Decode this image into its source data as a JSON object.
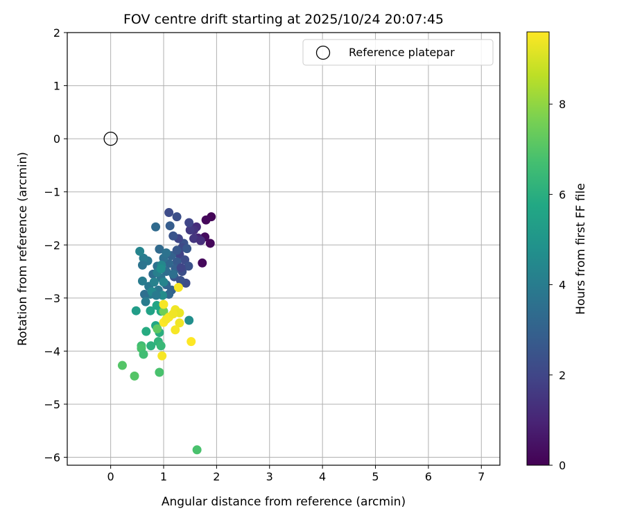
{
  "chart_data": {
    "type": "scatter",
    "title": "FOV centre drift starting at 2025/10/24 20:07:45",
    "xlabel": "Angular distance from reference (arcmin)",
    "ylabel": "Rotation from reference (arcmin)",
    "xlim": [
      -0.82,
      7.35
    ],
    "ylim": [
      -6.15,
      2.0
    ],
    "xticks": [
      "0",
      "1",
      "2",
      "3",
      "4",
      "5",
      "6",
      "7"
    ],
    "yticks": [
      "2",
      "1",
      "0",
      "−1",
      "−2",
      "−3",
      "−4",
      "−5",
      "−6"
    ],
    "grid": true,
    "legend": {
      "position": "top-right",
      "entries": [
        "Reference platepar"
      ]
    },
    "reference_point": {
      "x": 0.0,
      "y": 0.0
    },
    "colorbar": {
      "label": "Hours from first FF file",
      "range": [
        0,
        9.6
      ],
      "ticks": [
        "0",
        "2",
        "4",
        "6",
        "8"
      ],
      "colormap": "viridis"
    },
    "series": [
      {
        "points": [
          {
            "x": 1.9,
            "y": -1.47,
            "c": 0.1
          },
          {
            "x": 1.8,
            "y": -1.53,
            "c": 0.2
          },
          {
            "x": 1.88,
            "y": -1.97,
            "c": 0.2
          },
          {
            "x": 1.78,
            "y": -1.85,
            "c": 0.3
          },
          {
            "x": 1.73,
            "y": -2.34,
            "c": 0.2
          },
          {
            "x": 1.62,
            "y": -1.66,
            "c": 1.2
          },
          {
            "x": 1.57,
            "y": -1.72,
            "c": 1.4
          },
          {
            "x": 1.5,
            "y": -1.72,
            "c": 1.6
          },
          {
            "x": 1.65,
            "y": -1.87,
            "c": 1.0
          },
          {
            "x": 1.57,
            "y": -1.88,
            "c": 1.5
          },
          {
            "x": 1.7,
            "y": -1.92,
            "c": 1.3
          },
          {
            "x": 1.48,
            "y": -1.58,
            "c": 2.0
          },
          {
            "x": 1.25,
            "y": -1.47,
            "c": 2.3
          },
          {
            "x": 1.1,
            "y": -1.39,
            "c": 2.2
          },
          {
            "x": 1.38,
            "y": -1.97,
            "c": 2.4
          },
          {
            "x": 1.28,
            "y": -1.88,
            "c": 2.0
          },
          {
            "x": 1.18,
            "y": -1.83,
            "c": 2.5
          },
          {
            "x": 1.35,
            "y": -2.05,
            "c": 2.1
          },
          {
            "x": 1.44,
            "y": -2.07,
            "c": 2.6
          },
          {
            "x": 1.3,
            "y": -2.18,
            "c": 1.9
          },
          {
            "x": 1.4,
            "y": -2.28,
            "c": 2.2
          },
          {
            "x": 1.47,
            "y": -2.4,
            "c": 2.4
          },
          {
            "x": 1.35,
            "y": -2.5,
            "c": 2.3
          },
          {
            "x": 1.25,
            "y": -2.32,
            "c": 2.7
          },
          {
            "x": 1.2,
            "y": -2.6,
            "c": 2.5
          },
          {
            "x": 1.42,
            "y": -2.72,
            "c": 2.2
          },
          {
            "x": 1.32,
            "y": -2.67,
            "c": 2.4
          },
          {
            "x": 1.15,
            "y": -2.2,
            "c": 3.0
          },
          {
            "x": 1.1,
            "y": -2.35,
            "c": 3.2
          },
          {
            "x": 1.05,
            "y": -2.5,
            "c": 3.4
          },
          {
            "x": 1.22,
            "y": -2.45,
            "c": 2.9
          },
          {
            "x": 1.12,
            "y": -1.64,
            "c": 2.8
          },
          {
            "x": 0.85,
            "y": -1.66,
            "c": 3.3
          },
          {
            "x": 0.92,
            "y": -2.08,
            "c": 3.3
          },
          {
            "x": 1.0,
            "y": -2.25,
            "c": 3.5
          },
          {
            "x": 0.88,
            "y": -2.4,
            "c": 3.6
          },
          {
            "x": 0.8,
            "y": -2.55,
            "c": 3.4
          },
          {
            "x": 0.95,
            "y": -2.62,
            "c": 3.7
          },
          {
            "x": 1.05,
            "y": -2.75,
            "c": 3.1
          },
          {
            "x": 1.15,
            "y": -2.85,
            "c": 3.0
          },
          {
            "x": 0.9,
            "y": -2.85,
            "c": 3.8
          },
          {
            "x": 0.75,
            "y": -2.93,
            "c": 3.9
          },
          {
            "x": 0.64,
            "y": -2.93,
            "c": 3.5
          },
          {
            "x": 1.1,
            "y": -2.93,
            "c": 3.2
          },
          {
            "x": 0.7,
            "y": -2.3,
            "c": 3.8
          },
          {
            "x": 0.62,
            "y": -2.25,
            "c": 4.0
          },
          {
            "x": 0.6,
            "y": -2.38,
            "c": 3.7
          },
          {
            "x": 0.55,
            "y": -2.12,
            "c": 4.3
          },
          {
            "x": 0.6,
            "y": -2.68,
            "c": 4.0
          },
          {
            "x": 0.72,
            "y": -2.78,
            "c": 3.8
          },
          {
            "x": 0.82,
            "y": -2.7,
            "c": 4.2
          },
          {
            "x": 0.88,
            "y": -2.52,
            "c": 4.1
          },
          {
            "x": 0.96,
            "y": -2.38,
            "c": 4.4
          },
          {
            "x": 1.0,
            "y": -2.7,
            "c": 4.3
          },
          {
            "x": 0.66,
            "y": -3.07,
            "c": 4.0
          },
          {
            "x": 0.78,
            "y": -2.88,
            "c": 4.5
          },
          {
            "x": 0.98,
            "y": -2.95,
            "c": 4.6
          },
          {
            "x": 0.95,
            "y": -2.45,
            "c": 4.7
          },
          {
            "x": 1.18,
            "y": -2.55,
            "c": 3.5
          },
          {
            "x": 1.25,
            "y": -2.1,
            "c": 2.6
          },
          {
            "x": 1.33,
            "y": -2.43,
            "c": 2.0
          },
          {
            "x": 1.05,
            "y": -2.15,
            "c": 3.6
          },
          {
            "x": 0.86,
            "y": -2.95,
            "c": 3.9
          },
          {
            "x": 1.48,
            "y": -3.42,
            "c": 4.7
          },
          {
            "x": 0.48,
            "y": -3.24,
            "c": 5.3
          },
          {
            "x": 0.75,
            "y": -3.24,
            "c": 5.5
          },
          {
            "x": 0.87,
            "y": -3.14,
            "c": 5.6
          },
          {
            "x": 0.95,
            "y": -3.25,
            "c": 5.8
          },
          {
            "x": 0.85,
            "y": -3.52,
            "c": 5.7
          },
          {
            "x": 0.92,
            "y": -3.65,
            "c": 6.0
          },
          {
            "x": 0.67,
            "y": -3.63,
            "c": 5.9
          },
          {
            "x": 0.9,
            "y": -3.82,
            "c": 6.2
          },
          {
            "x": 0.76,
            "y": -3.9,
            "c": 6.1
          },
          {
            "x": 0.95,
            "y": -3.9,
            "c": 6.4
          },
          {
            "x": 0.58,
            "y": -3.9,
            "c": 6.6
          },
          {
            "x": 0.58,
            "y": -3.95,
            "c": 6.8
          },
          {
            "x": 0.62,
            "y": -4.06,
            "c": 6.6
          },
          {
            "x": 0.22,
            "y": -4.27,
            "c": 7.0
          },
          {
            "x": 0.45,
            "y": -4.47,
            "c": 7.0
          },
          {
            "x": 0.92,
            "y": -4.4,
            "c": 6.8
          },
          {
            "x": 1.63,
            "y": -5.86,
            "c": 6.8
          },
          {
            "x": 0.88,
            "y": -3.58,
            "c": 7.2
          },
          {
            "x": 1.0,
            "y": -3.25,
            "c": 7.5
          },
          {
            "x": 1.28,
            "y": -2.8,
            "c": 9.5
          },
          {
            "x": 1.0,
            "y": -3.12,
            "c": 9.5
          },
          {
            "x": 1.22,
            "y": -3.22,
            "c": 9.4
          },
          {
            "x": 1.3,
            "y": -3.28,
            "c": 9.3
          },
          {
            "x": 1.1,
            "y": -3.36,
            "c": 9.5
          },
          {
            "x": 1.18,
            "y": -3.3,
            "c": 9.4
          },
          {
            "x": 1.0,
            "y": -3.46,
            "c": 9.6
          },
          {
            "x": 1.05,
            "y": -3.4,
            "c": 9.5
          },
          {
            "x": 1.3,
            "y": -3.47,
            "c": 9.4
          },
          {
            "x": 1.22,
            "y": -3.6,
            "c": 9.5
          },
          {
            "x": 1.52,
            "y": -3.82,
            "c": 9.6
          },
          {
            "x": 0.97,
            "y": -4.09,
            "c": 9.5
          }
        ]
      }
    ]
  }
}
